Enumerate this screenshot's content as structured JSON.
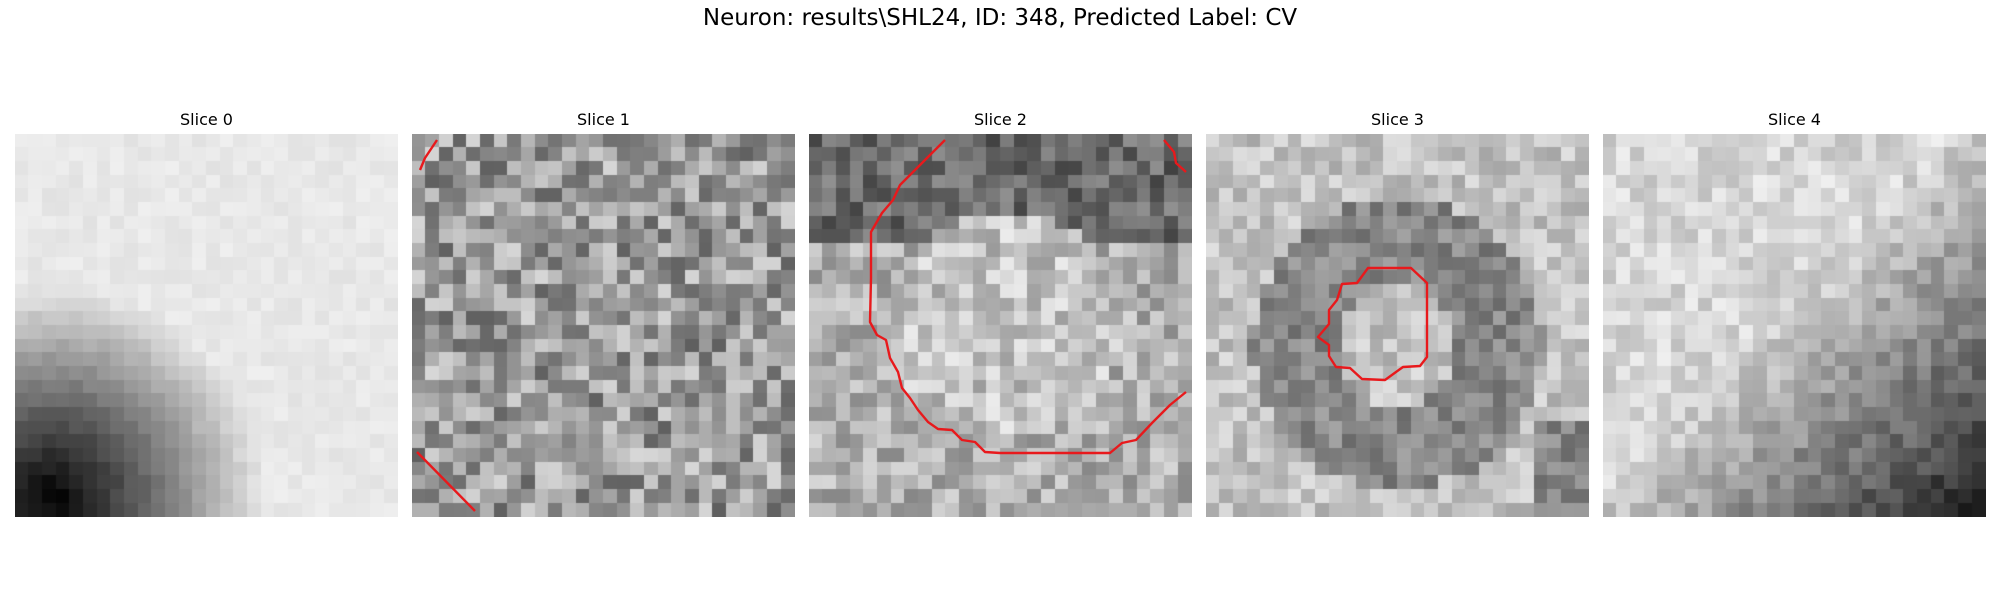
{
  "figure": {
    "title": "Neuron: results\\SHL24, ID: 348, Predicted Label: CV"
  },
  "panels": [
    {
      "title": "Slice 0"
    },
    {
      "title": "Slice 1"
    },
    {
      "title": "Slice 2"
    },
    {
      "title": "Slice 3"
    },
    {
      "title": "Slice 4"
    }
  ],
  "colors": {
    "contour": "#e8191c",
    "background": "#ffffff"
  }
}
